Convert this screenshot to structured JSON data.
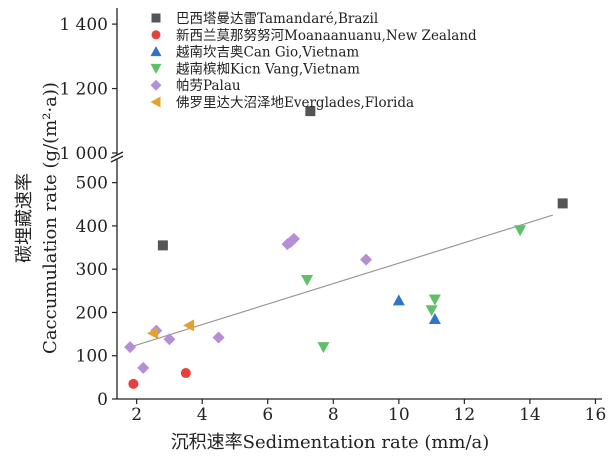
{
  "chart_data": {
    "type": "scatter",
    "xlabel": "沉积速率Sedimentation rate (mm/a)",
    "ylabel_cn": "碳埋藏速率",
    "ylabel": "Caccumulation rate (g/(m²·a))",
    "x_ticks": [
      2,
      4,
      6,
      8,
      10,
      12,
      14,
      16
    ],
    "xlim": [
      1.4,
      16.2
    ],
    "y_lower_ticks": [
      0,
      100,
      200,
      300,
      400,
      500
    ],
    "y_upper_ticks": [
      "1 000",
      "1 200",
      "1 400"
    ],
    "y_upper_tick_values": [
      1000,
      1200,
      1400
    ],
    "ylim_lower": [
      0,
      550
    ],
    "ylim_upper": [
      1000,
      1450
    ],
    "axis_break": true,
    "legend_position": "top-left",
    "series": [
      {
        "name": "巴西塔曼达雷Tamandaré,Brazil",
        "marker": "square",
        "color": "#555555",
        "points": [
          [
            2.8,
            355
          ],
          [
            7.3,
            1130
          ],
          [
            15.0,
            452
          ]
        ]
      },
      {
        "name": "新西兰莫那努努河Moanaanuanu,New Zealand",
        "marker": "circle",
        "color": "#e8413c",
        "points": [
          [
            1.9,
            35
          ],
          [
            3.5,
            60
          ]
        ]
      },
      {
        "name": "越南坎吉奥Can Gio,Vietnam",
        "marker": "triangle-up",
        "color": "#2f74c8",
        "points": [
          [
            10.0,
            228
          ],
          [
            11.1,
            185
          ]
        ]
      },
      {
        "name": "越南槟椥Kicn Vang,Vietnam",
        "marker": "triangle-down",
        "color": "#5fbf6a",
        "points": [
          [
            7.2,
            275
          ],
          [
            7.7,
            120
          ],
          [
            11.0,
            205
          ],
          [
            11.1,
            230
          ],
          [
            13.7,
            390
          ]
        ]
      },
      {
        "name": "帕劳Palau",
        "marker": "diamond",
        "color": "#b48fd6",
        "points": [
          [
            1.8,
            120
          ],
          [
            2.2,
            72
          ],
          [
            2.6,
            158
          ],
          [
            3.0,
            138
          ],
          [
            4.5,
            142
          ],
          [
            6.6,
            358
          ],
          [
            6.7,
            363
          ],
          [
            6.8,
            370
          ],
          [
            9.0,
            322
          ]
        ]
      },
      {
        "name": "佛罗里达大沼泽地Everglades,Florida",
        "marker": "triangle-left",
        "color": "#e3a22b",
        "points": [
          [
            2.5,
            152
          ],
          [
            3.6,
            170
          ]
        ]
      }
    ],
    "trendline": {
      "x": [
        1.8,
        14.7
      ],
      "y": [
        120,
        425
      ],
      "color": "#999999"
    }
  }
}
